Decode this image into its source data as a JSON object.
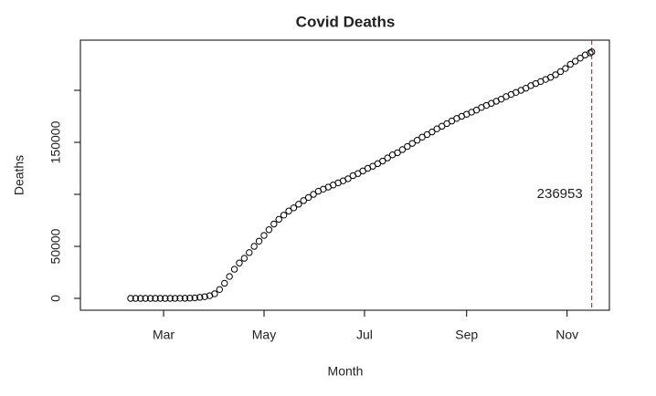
{
  "chart_data": {
    "type": "scatter",
    "title": "Covid Deaths",
    "x_label": "Month",
    "y_label": "Deaths",
    "x": [
      41,
      44,
      47,
      50,
      53,
      56,
      59,
      62,
      65,
      68,
      71,
      74,
      77,
      80,
      83,
      86,
      89,
      92,
      95,
      98,
      101,
      104,
      107,
      110,
      113,
      116,
      119,
      122,
      125,
      128,
      131,
      134,
      137,
      140,
      143,
      146,
      149,
      152,
      155,
      158,
      161,
      164,
      167,
      170,
      173,
      176,
      179,
      182,
      185,
      188,
      191,
      194,
      197,
      200,
      203,
      206,
      209,
      212,
      215,
      218,
      221,
      224,
      227,
      230,
      233,
      236,
      239,
      242,
      245,
      248,
      251,
      254,
      257,
      260,
      263,
      266,
      269,
      272,
      275,
      278,
      281,
      284,
      287,
      290,
      293,
      296,
      299,
      302,
      305,
      308,
      311,
      314,
      317,
      320,
      321
    ],
    "series": [
      {
        "name": "Deaths",
        "color": "#000000",
        "values": [
          0,
          0,
          0,
          0,
          0,
          0,
          0,
          0,
          10,
          20,
          50,
          100,
          250,
          500,
          1000,
          1600,
          2600,
          4400,
          8500,
          14500,
          21000,
          28000,
          34000,
          38500,
          44000,
          50000,
          55000,
          60500,
          66000,
          71500,
          76000,
          80000,
          84000,
          87000,
          90500,
          94000,
          97000,
          100000,
          103000,
          105000,
          107000,
          109000,
          111000,
          113000,
          115000,
          118000,
          120000,
          122500,
          125000,
          127000,
          129500,
          132000,
          135000,
          138000,
          140000,
          143000,
          146000,
          149000,
          152000,
          155000,
          157500,
          160000,
          163000,
          165500,
          168000,
          170500,
          173000,
          175000,
          177000,
          179000,
          181000,
          183500,
          185500,
          187500,
          189500,
          191500,
          194000,
          196000,
          198000,
          200000,
          202000,
          204500,
          206500,
          208500,
          210500,
          212500,
          215000,
          218000,
          221000,
          225000,
          228000,
          231000,
          234000,
          236000,
          236953
        ]
      }
    ],
    "xlim": [
      10.5,
      331.7
    ],
    "xticks": [
      {
        "value": 61,
        "label": "Mar"
      },
      {
        "value": 122,
        "label": "May"
      },
      {
        "value": 183,
        "label": "Jul"
      },
      {
        "value": 245,
        "label": "Sep"
      },
      {
        "value": 306,
        "label": "Nov"
      }
    ],
    "ylim": [
      -11404,
      248246
    ],
    "yticks": [
      0,
      50000,
      {
        "value": 100000,
        "label": null
      },
      150000,
      {
        "value": 200000,
        "label": null
      }
    ],
    "annotation": "236953",
    "vline_color": "#cc0000"
  }
}
